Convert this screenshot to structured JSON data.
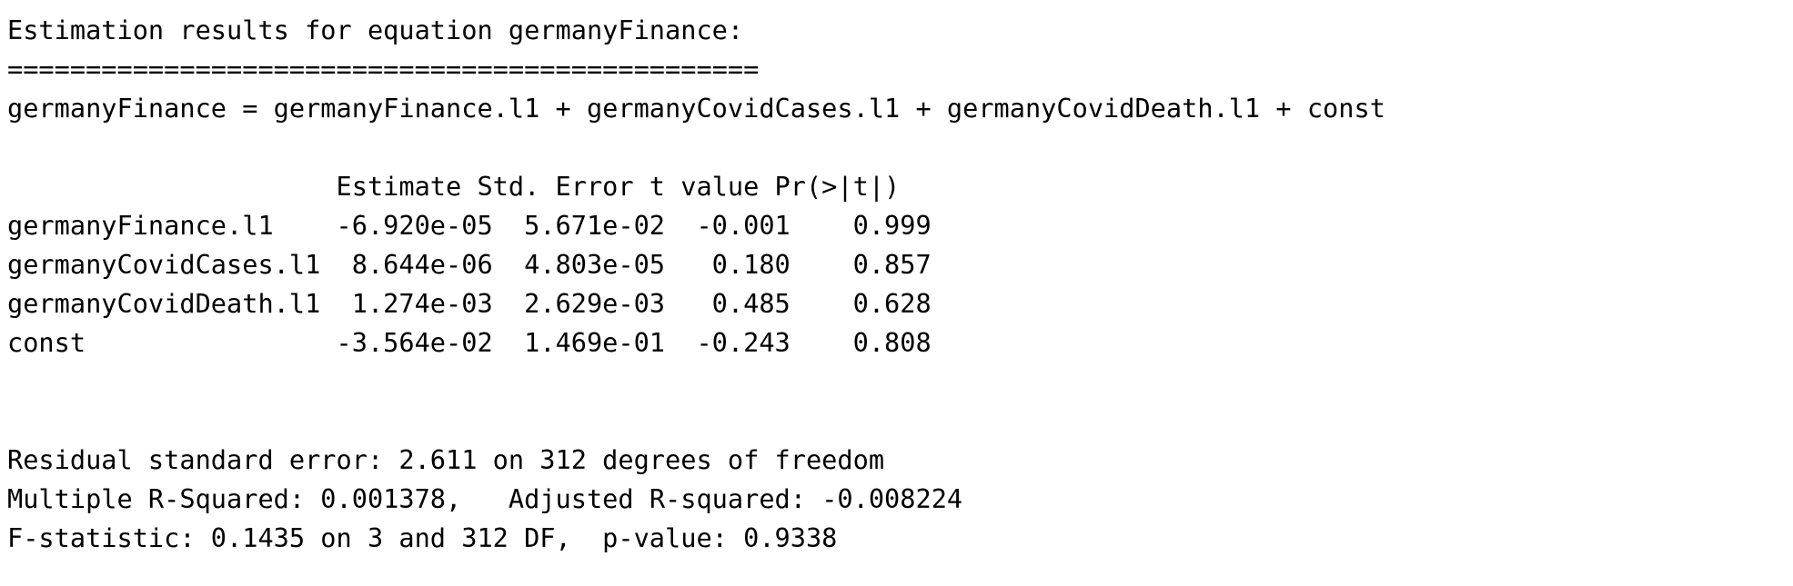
{
  "console": {
    "lines": [
      "Estimation results for equation germanyFinance:",
      "================================================",
      "germanyFinance = germanyFinance.l1 + germanyCovidCases.l1 + germanyCovidDeath.l1 + const",
      "",
      "                     Estimate Std. Error t value Pr(>|t|)",
      "germanyFinance.l1    -6.920e-05  5.671e-02  -0.001    0.999",
      "germanyCovidCases.l1  8.644e-06  4.803e-05   0.180    0.857",
      "germanyCovidDeath.l1  1.274e-03  2.629e-03   0.485    0.628",
      "const                -3.564e-02  1.469e-01  -0.243    0.808",
      "",
      "",
      "Residual standard error: 2.611 on 312 degrees of freedom",
      "Multiple R-Squared: 0.001378,\tAdjusted R-squared: -0.008224 ",
      "F-statistic: 0.1435 on 3 and 312 DF,  p-value: 0.9338"
    ]
  }
}
